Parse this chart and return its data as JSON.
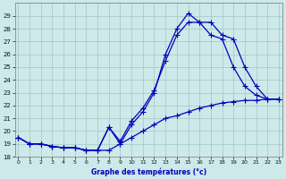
{
  "title": "Graphe des températures (°c)",
  "bg_color": "#cde9e9",
  "grid_color": "#a8cccc",
  "line_color": "#0000bb",
  "xlim": [
    -0.3,
    23.3
  ],
  "ylim": [
    18,
    30
  ],
  "xticks": [
    0,
    1,
    2,
    3,
    4,
    5,
    6,
    7,
    8,
    9,
    10,
    11,
    12,
    13,
    14,
    15,
    16,
    17,
    18,
    19,
    20,
    21,
    22,
    23
  ],
  "yticks": [
    18,
    19,
    20,
    21,
    22,
    23,
    24,
    25,
    26,
    27,
    28,
    29
  ],
  "series_flat": [
    19.5,
    19.0,
    19.0,
    18.8,
    18.7,
    18.7,
    18.5,
    18.5,
    18.5,
    19.0,
    19.5,
    20.0,
    20.5,
    21.0,
    21.2,
    21.5,
    21.8,
    22.0,
    22.2,
    22.3,
    22.4,
    22.4,
    22.5,
    22.5
  ],
  "series_high": [
    19.5,
    19.0,
    19.0,
    18.8,
    18.7,
    18.7,
    18.5,
    18.5,
    20.3,
    19.0,
    20.5,
    21.5,
    23.0,
    26.0,
    28.0,
    29.2,
    28.5,
    28.5,
    27.5,
    27.2,
    25.0,
    23.5,
    22.5,
    22.5
  ],
  "series_mid": [
    19.5,
    19.0,
    19.0,
    18.8,
    18.7,
    18.7,
    18.5,
    18.5,
    20.3,
    19.2,
    20.8,
    21.8,
    23.2,
    25.5,
    27.5,
    28.5,
    28.5,
    27.5,
    27.2,
    25.0,
    23.5,
    22.8,
    22.5,
    22.5
  ]
}
